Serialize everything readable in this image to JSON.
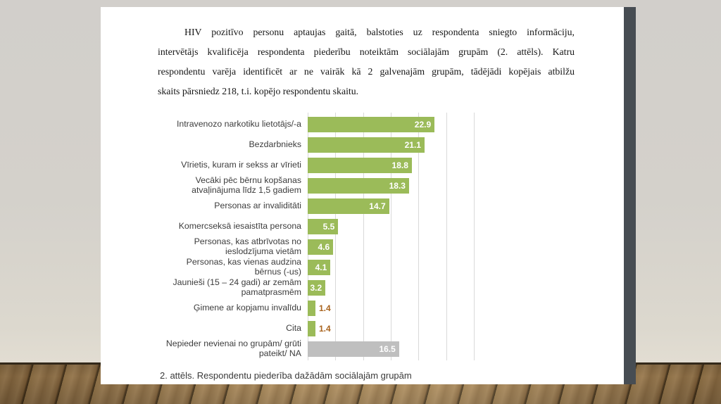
{
  "page": {
    "paragraph_lines": [
      "HIV pozitīvo personu aptaujas gaitā, balstoties uz respondenta sniegto informāciju,",
      "intervētājs kvalificēja respondenta piederību noteiktām sociālajām grupām (2. attēls). Katru",
      "respondentu varēja identificēt ar ne vairāk kā 2 galvenajām grupām, tādējādi kopējais atbilžu",
      "skaits pārsniedz 218, t.i. kopējo respondentu skaitu."
    ]
  },
  "chart_data": {
    "type": "bar",
    "orientation": "horizontal",
    "title": "",
    "xlabel": "",
    "ylabel": "",
    "caption": "2. attēls. Respondentu piederība dažādām sociālajām grupām",
    "xlim": [
      0,
      30
    ],
    "grid_interval": 5,
    "grid": true,
    "categories": [
      "Intravenozo narkotiku lietotājs/-a",
      "Bezdarbnieks",
      "Vīrietis, kuram ir sekss ar vīrieti",
      "Vecāki pēc bērnu kopšanas atvaļinājuma līdz 1,5 gadiem",
      "Personas ar invaliditāti",
      "Komercseksā iesaistīta persona",
      "Personas, kas atbrīvotas no ieslodzījuma vietām",
      "Personas, kas vienas audzina bērnus (-us)",
      "Jaunieši (15 – 24 gadi) ar zemām pamatprasmēm",
      "Ģimene ar kopjamu invalīdu",
      "Cita",
      "Nepieder nevienai no grupām/ grūti pateikt/ NA"
    ],
    "category_lines": [
      [
        "Intravenozo narkotiku lietotājs/-a"
      ],
      [
        "Bezdarbnieks"
      ],
      [
        "Vīrietis, kuram ir sekss ar vīrieti"
      ],
      [
        "Vecāki pēc bērnu kopšanas",
        "atvaļinājuma līdz 1,5 gadiem"
      ],
      [
        "Personas ar invaliditāti"
      ],
      [
        "Komercseksā iesaistīta persona"
      ],
      [
        "Personas, kas atbrīvotas no",
        "ieslodzījuma vietām"
      ],
      [
        "Personas, kas vienas audzina",
        "bērnus (-us)"
      ],
      [
        "Jaunieši (15 – 24 gadi) ar zemām",
        "pamatprasmēm"
      ],
      [
        "Ģimene ar kopjamu invalīdu"
      ],
      [
        "Cita"
      ],
      [
        "Nepieder nevienai no grupām/ grūti",
        "pateikt/ NA"
      ]
    ],
    "values": [
      22.9,
      21.1,
      18.8,
      18.3,
      14.7,
      5.5,
      4.6,
      4.1,
      3.2,
      1.4,
      1.4,
      16.5
    ],
    "bar_colors": [
      "#9bbb59",
      "#9bbb59",
      "#9bbb59",
      "#9bbb59",
      "#9bbb59",
      "#9bbb59",
      "#9bbb59",
      "#9bbb59",
      "#9bbb59",
      "#9bbb59",
      "#9bbb59",
      "#bfbfbf"
    ],
    "value_label_colors": {
      "inside": "#ffffff",
      "outside": "#a9641f"
    },
    "gridline_color": "#d9d9d9",
    "legend": "none"
  },
  "colors": {
    "bar_green": "#9bbb59",
    "bar_gray": "#bfbfbf",
    "page_background": "#ffffff",
    "page_shadow": "#474d53",
    "wall": "#d3d0cb",
    "floor_wood": "#a18050"
  }
}
